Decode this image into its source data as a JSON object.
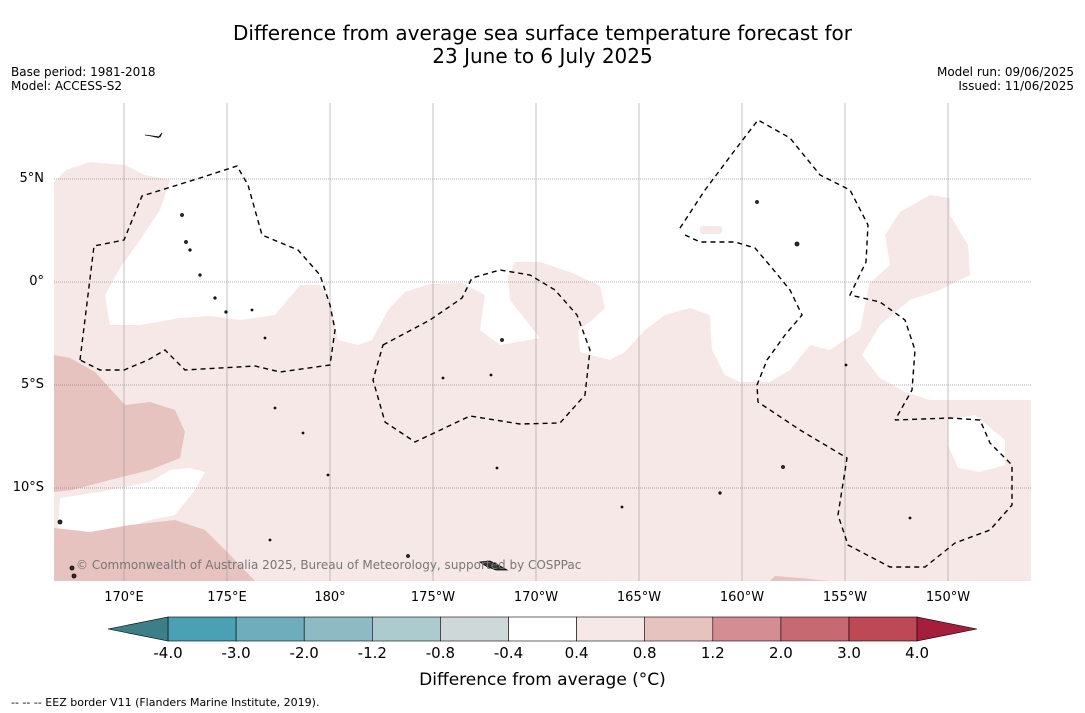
{
  "title": {
    "line1": "Difference from average sea surface temperature forecast for",
    "line2": "23 June to 6 July 2025"
  },
  "meta_left": {
    "base_period": "Base period: 1981-2018",
    "model": "Model: ACCESS-S2"
  },
  "meta_right": {
    "model_run": "Model run: 09/06/2025",
    "issued": "Issued: 11/06/2025"
  },
  "credit": "© Commonwealth of Australia 2025, Bureau of Meteorology, supported by COSPPac",
  "lon_labels": [
    "170°E",
    "175°E",
    "180°",
    "175°W",
    "170°W",
    "165°W",
    "160°W",
    "155°W",
    "150°W"
  ],
  "lat_labels": [
    "5°N",
    "0°",
    "5°S",
    "10°S"
  ],
  "colorbar": {
    "ticks": [
      "-4.0",
      "-3.0",
      "-2.0",
      "-1.2",
      "-0.8",
      "-0.4",
      "0.4",
      "0.8",
      "1.2",
      "2.0",
      "3.0",
      "4.0"
    ],
    "colors": [
      "#3d7f86",
      "#4ba1b4",
      "#6eaebc",
      "#8ebac4",
      "#abcbcf",
      "#cfd8d9",
      "#ffffff",
      "#f5e8e7",
      "#e7c3bf",
      "#d48d92",
      "#c86870",
      "#bd4957",
      "#a51f3c"
    ],
    "title": "Difference from average (°C)"
  },
  "legend_eez": "--  --  -- EEZ border V11 (Flanders Marine Institute, 2019)."
}
